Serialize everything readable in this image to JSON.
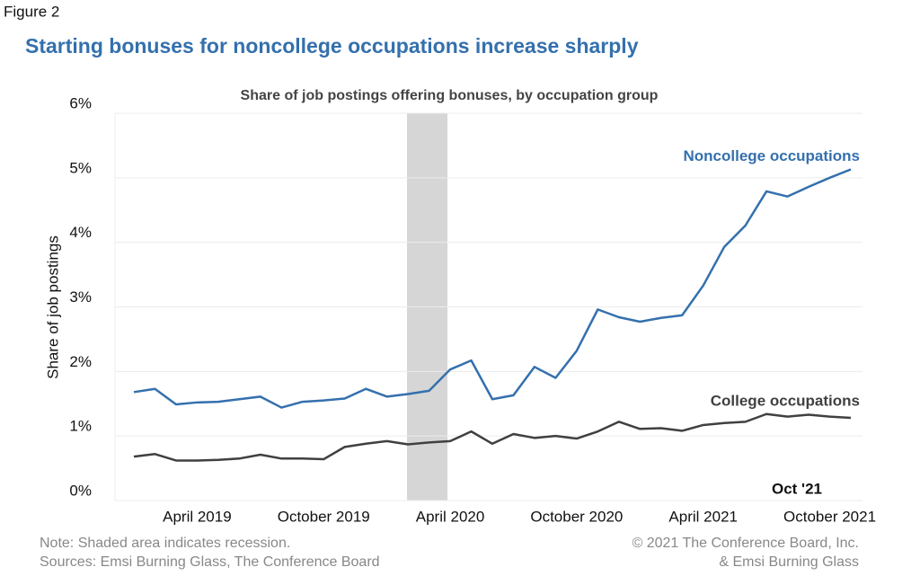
{
  "figure_label": "Figure 2",
  "headline": "Starting bonuses for noncollege occupations increase sharply",
  "chart_data": {
    "type": "line",
    "title": "Share of job postings offering bonuses, by occupation group",
    "y_label": "Share of job postings",
    "categories": [
      null,
      null,
      null,
      "April 2019",
      null,
      null,
      null,
      null,
      null,
      "October 2019",
      null,
      null,
      null,
      null,
      null,
      "April 2020",
      null,
      null,
      null,
      null,
      null,
      "October 2020",
      null,
      null,
      null,
      null,
      null,
      "April 2021",
      null,
      null,
      null,
      null,
      null,
      "October 2021",
      null
    ],
    "series": [
      {
        "name": "Noncollege occupations",
        "color": "#3470ad",
        "values": [
          1.68,
          1.73,
          1.49,
          1.52,
          1.53,
          1.57,
          1.61,
          1.44,
          1.53,
          1.55,
          1.58,
          1.73,
          1.61,
          1.65,
          1.7,
          2.03,
          2.17,
          1.57,
          1.63,
          2.07,
          1.9,
          2.32,
          2.96,
          2.84,
          2.77,
          2.83,
          2.87,
          3.33,
          3.93,
          4.26,
          4.79,
          4.71,
          4.86,
          5.0,
          5.13
        ]
      },
      {
        "name": "College occupations",
        "color": "#404040",
        "values": [
          0.68,
          0.72,
          0.62,
          0.62,
          0.63,
          0.65,
          0.71,
          0.65,
          0.65,
          0.64,
          0.83,
          0.88,
          0.92,
          0.87,
          0.9,
          0.92,
          1.07,
          0.88,
          1.03,
          0.97,
          1.0,
          0.96,
          1.07,
          1.22,
          1.11,
          1.12,
          1.08,
          1.17,
          1.2,
          1.22,
          1.34,
          1.3,
          1.33,
          1.3,
          1.28
        ]
      }
    ],
    "ylim": [
      0,
      6
    ],
    "yticks": [
      {
        "value": 0,
        "label": "0%"
      },
      {
        "value": 1,
        "label": "1%"
      },
      {
        "value": 2,
        "label": "2%"
      },
      {
        "value": 3,
        "label": "3%"
      },
      {
        "value": 4,
        "label": "4%"
      },
      {
        "value": 5,
        "label": "5%"
      },
      {
        "value": 6,
        "label": "6%"
      }
    ],
    "grid": true,
    "annotation": "Oct '21"
  },
  "footer": {
    "note": "Note: Shaded area indicates recession.",
    "sources": "Sources: Emsi Burning Glass, The Conference Board",
    "copyright": [
      "© 2021 The Conference Board, Inc.",
      "& Emsi Burning Glass"
    ]
  }
}
